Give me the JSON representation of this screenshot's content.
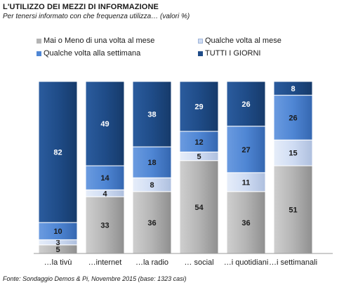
{
  "title": "L'UTILIZZO  DEI MEZZI DI INFORMAZIONE",
  "subtitle": "Per tenersi informato con che frequenza utilizza… (valori %)",
  "source": "Fonte: Sondaggio Demos & Pi, Novembre 2015 (base: 1323 casi)",
  "colors": {
    "mai": "#b4b4b4",
    "qualche_mese": "#cfdcf3",
    "qualche_settimana": "#4f86d4",
    "tutti": "#1f4c88"
  },
  "chart_data": {
    "type": "bar",
    "stacked": true,
    "orientation": "vertical",
    "ylim": [
      0,
      100
    ],
    "grid": false,
    "legend_position": "top",
    "categories": [
      "…la tivù",
      "…internet",
      "…la radio",
      "… social",
      "…i quotidiani",
      "…i settimanali"
    ],
    "series": [
      {
        "name": "Mai o Meno di una volta al mese",
        "key": "mai",
        "values": [
          5,
          33,
          36,
          54,
          36,
          51
        ]
      },
      {
        "name": "Qualche volta al mese",
        "key": "qualche_mese",
        "values": [
          3,
          4,
          8,
          5,
          11,
          15
        ]
      },
      {
        "name": "Qualche volta alla settimana",
        "key": "qualche_settimana",
        "values": [
          10,
          14,
          18,
          12,
          27,
          26
        ]
      },
      {
        "name": "TUTTI I GIORNI",
        "key": "tutti",
        "values": [
          82,
          49,
          38,
          29,
          26,
          8
        ]
      }
    ]
  }
}
